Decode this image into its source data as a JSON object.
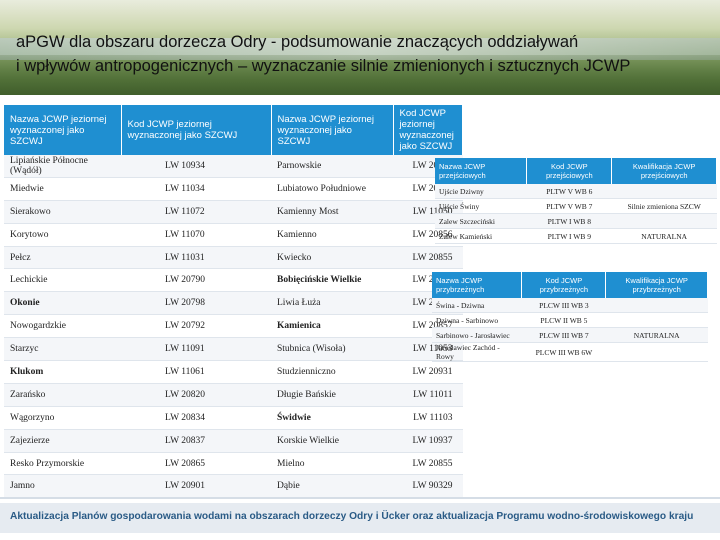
{
  "header": {
    "title_line1": "aPGW dla obszaru dorzecza Odry - podsumowanie znaczących oddziaływań",
    "title_line2": "i wpływów antropogenicznych – wyznaczanie silnie zmienionych i sztucznych JCWP"
  },
  "main_table": {
    "headers": [
      "Nazwa JCWP jeziornej wyznaczonej jako SZCWJ",
      "Kod JCWP jeziornej wyznaczonej jako SZCWJ",
      "Nazwa JCWP jeziornej wyznaczonej jako SZCWJ",
      "Kod JCWP jeziornej wyznaczonej jako SZCWJ"
    ],
    "rows": [
      {
        "name1": "Lipiańskie Północne (Wądół)",
        "code1": "LW 10934",
        "name2": "Parnowskie",
        "code2": "LW 20995",
        "bold1": false,
        "bold2": false
      },
      {
        "name1": "Miedwie",
        "code1": "LW 11034",
        "name2": "Lubiatowo Południowe",
        "code2": "LW 20910",
        "bold1": false,
        "bold2": false
      },
      {
        "name1": "Sierakowo",
        "code1": "LW 11072",
        "name2": "Kamienny Most",
        "code2": "LW 11050",
        "bold1": false,
        "bold2": false
      },
      {
        "name1": "Korytowo",
        "code1": "LW 11070",
        "name2": "Kamienno",
        "code2": "LW 20856",
        "bold1": false,
        "bold2": false
      },
      {
        "name1": "Pełcz",
        "code1": "LW 11031",
        "name2": "Kwiecko",
        "code2": "LW 20855",
        "bold1": false,
        "bold2": false
      },
      {
        "name1": "Lechickie",
        "code1": "LW 20790",
        "name2": "Bobięcińskie Wielkie",
        "code2": "LW 20857",
        "bold1": false,
        "bold2": true
      },
      {
        "name1": "Okonie",
        "code1": "LW 20798",
        "name2": "Liwia Łuża",
        "code2": "LW 20809",
        "bold1": true,
        "bold2": false
      },
      {
        "name1": "Nowogardzkie",
        "code1": "LW 20792",
        "name2": "Kamienica",
        "code2": "LW 20857",
        "bold1": false,
        "bold2": true
      },
      {
        "name1": "Starzyc",
        "code1": "LW 11091",
        "name2": "Stubnica (Wisoła)",
        "code2": "LW 11053",
        "bold1": false,
        "bold2": false
      },
      {
        "name1": "Klukom",
        "code1": "LW 11061",
        "name2": "Studzienniczno",
        "code2": "LW 20931",
        "bold1": true,
        "bold2": false
      },
      {
        "name1": "Zarańsko",
        "code1": "LW 20820",
        "name2": "Długie Bańskie",
        "code2": "LW 11011",
        "bold1": false,
        "bold2": false
      },
      {
        "name1": "Wągorzyno",
        "code1": "LW 20834",
        "name2": "Świdwie",
        "code2": "LW 11103",
        "bold1": false,
        "bold2": true
      },
      {
        "name1": "Zajezierze",
        "code1": "LW 20837",
        "name2": "Korskie Wielkie",
        "code2": "LW 10937",
        "bold1": false,
        "bold2": false
      },
      {
        "name1": "Resko Przymorskie",
        "code1": "LW 20865",
        "name2": "Mielno",
        "code2": "LW 20855",
        "bold1": false,
        "bold2": false
      },
      {
        "name1": "Jamno",
        "code1": "LW 20901",
        "name2": "Dąbie",
        "code2": "LW 90329",
        "bold1": false,
        "bold2": false
      }
    ]
  },
  "transitional_table": {
    "headers": [
      "Nazwa JCWP przejściowych",
      "Kod JCWP przejściowych",
      "Kwalifikacja JCWP przejściowych"
    ],
    "rows": [
      {
        "name": "Ujście Dziwny",
        "code": "PLTW V WB 6",
        "qual": ""
      },
      {
        "name": "Ujście Świny",
        "code": "PLTW V WB 7",
        "qual": "Silnie zmieniona SZCW"
      },
      {
        "name": "Zalew Szczeciński",
        "code": "PLTW I WB 8",
        "qual": ""
      },
      {
        "name": "Zalew Kamieński",
        "code": "PLTW I WB 9",
        "qual": "NATURALNA"
      }
    ]
  },
  "coastal_table": {
    "headers": [
      "Nazwa JCWP przybrzeżnych",
      "Kod JCWP przybrzeżnych",
      "Kwalifikacja JCWP przybrzeżnych"
    ],
    "rows": [
      {
        "name": "Świna - Dziwna",
        "code": "PLCW III WB 3",
        "qual": ""
      },
      {
        "name": "Dziwna - Sarbinowo",
        "code": "PLCW II WB 5",
        "qual": ""
      },
      {
        "name": "Sarbinowo - Jarosławiec",
        "code": "PLCW III WB 7",
        "qual": "NATURALNA"
      },
      {
        "name": "Jarosławiec Zachód - Rowy",
        "code": "PLCW III WB 6W",
        "qual": ""
      }
    ]
  },
  "footer": {
    "text": "Aktualizacja Planów gospodarowania wodami na obszarach dorzeczy Odry i Ücker oraz aktualizacja Programu wodno-środowiskowego kraju"
  },
  "colors": {
    "header_blue": "#1f8fd1",
    "footer_text": "#2a5b86",
    "row_stripe": "#f4f6f9"
  }
}
